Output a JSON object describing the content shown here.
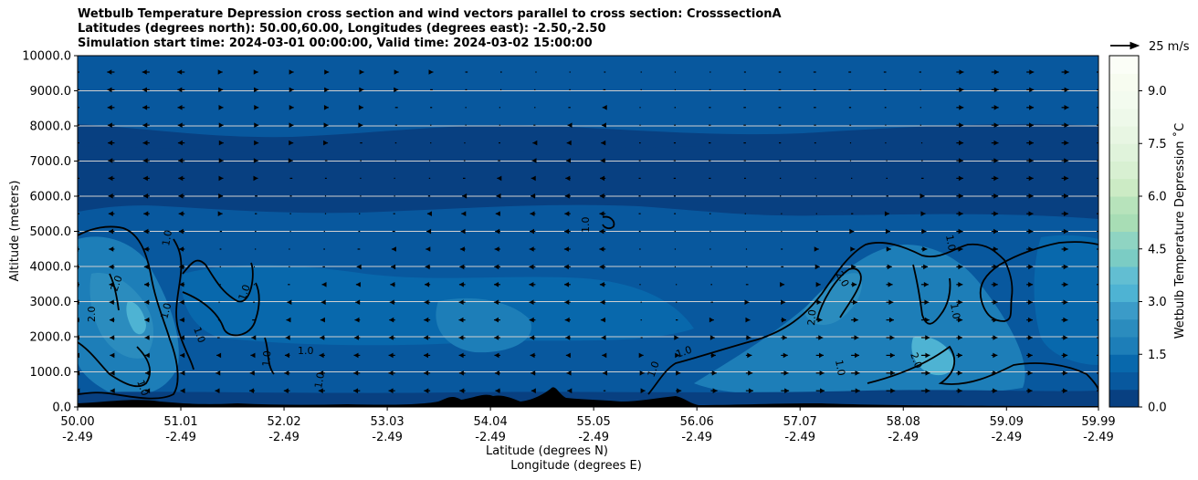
{
  "chart_data": {
    "type": "contour",
    "title_lines": [
      "Wetbulb Temperature Depression cross section and wind vectors parallel to cross section: CrosssectionA",
      "Latitudes (degrees north): 50.00,60.00, Longitudes (degrees east): -2.50,-2.50",
      "Simulation start time: 2024-03-01 00:00:00, Valid time: 2024-03-02 15:00:00"
    ],
    "ylabel": "Altitude (meters)",
    "xlabel_lines": [
      "Latitude (degrees N)",
      "Longitude (degrees E)"
    ],
    "ylim": [
      0,
      10000
    ],
    "yticks": [
      "0.0",
      "1000.0",
      "2000.0",
      "3000.0",
      "4000.0",
      "5000.0",
      "6000.0",
      "7000.0",
      "8000.0",
      "9000.0",
      "10000.0"
    ],
    "xlim": [
      50.0,
      59.99
    ],
    "xticks": [
      {
        "lat": "50.00",
        "lon": "-2.49"
      },
      {
        "lat": "51.01",
        "lon": "-2.49"
      },
      {
        "lat": "52.02",
        "lon": "-2.49"
      },
      {
        "lat": "53.03",
        "lon": "-2.49"
      },
      {
        "lat": "54.04",
        "lon": "-2.49"
      },
      {
        "lat": "55.05",
        "lon": "-2.49"
      },
      {
        "lat": "56.06",
        "lon": "-2.49"
      },
      {
        "lat": "57.07",
        "lon": "-2.49"
      },
      {
        "lat": "58.08",
        "lon": "-2.49"
      },
      {
        "lat": "59.09",
        "lon": "-2.49"
      },
      {
        "lat": "59.99",
        "lon": "-2.49"
      }
    ],
    "gridlines": "horizontal",
    "colorbar": {
      "label": "Wetbulb Temperature Depression ˚C",
      "ticks": [
        "0.0",
        "1.5",
        "3.0",
        "4.5",
        "6.0",
        "7.5",
        "9.0"
      ],
      "range": [
        0,
        10
      ],
      "levels": 20,
      "colormap": "GnBu_r",
      "colors": [
        "#084081",
        "#08589e",
        "#0868ac",
        "#1d7eb8",
        "#2b8cbe",
        "#3b9bc8",
        "#4eb3d3",
        "#62bed2",
        "#7bccc4",
        "#8fd4c2",
        "#a8ddb5",
        "#b7e3bb",
        "#ccebc5",
        "#d8f0d2",
        "#e0f3db",
        "#e8f6e3",
        "#eef9ea",
        "#f3fbef",
        "#f7fcf0",
        "#fbfef7"
      ]
    },
    "wind_reference": {
      "label": "25 m/s"
    },
    "contour_labels": [
      "1.0",
      "2.0"
    ]
  }
}
